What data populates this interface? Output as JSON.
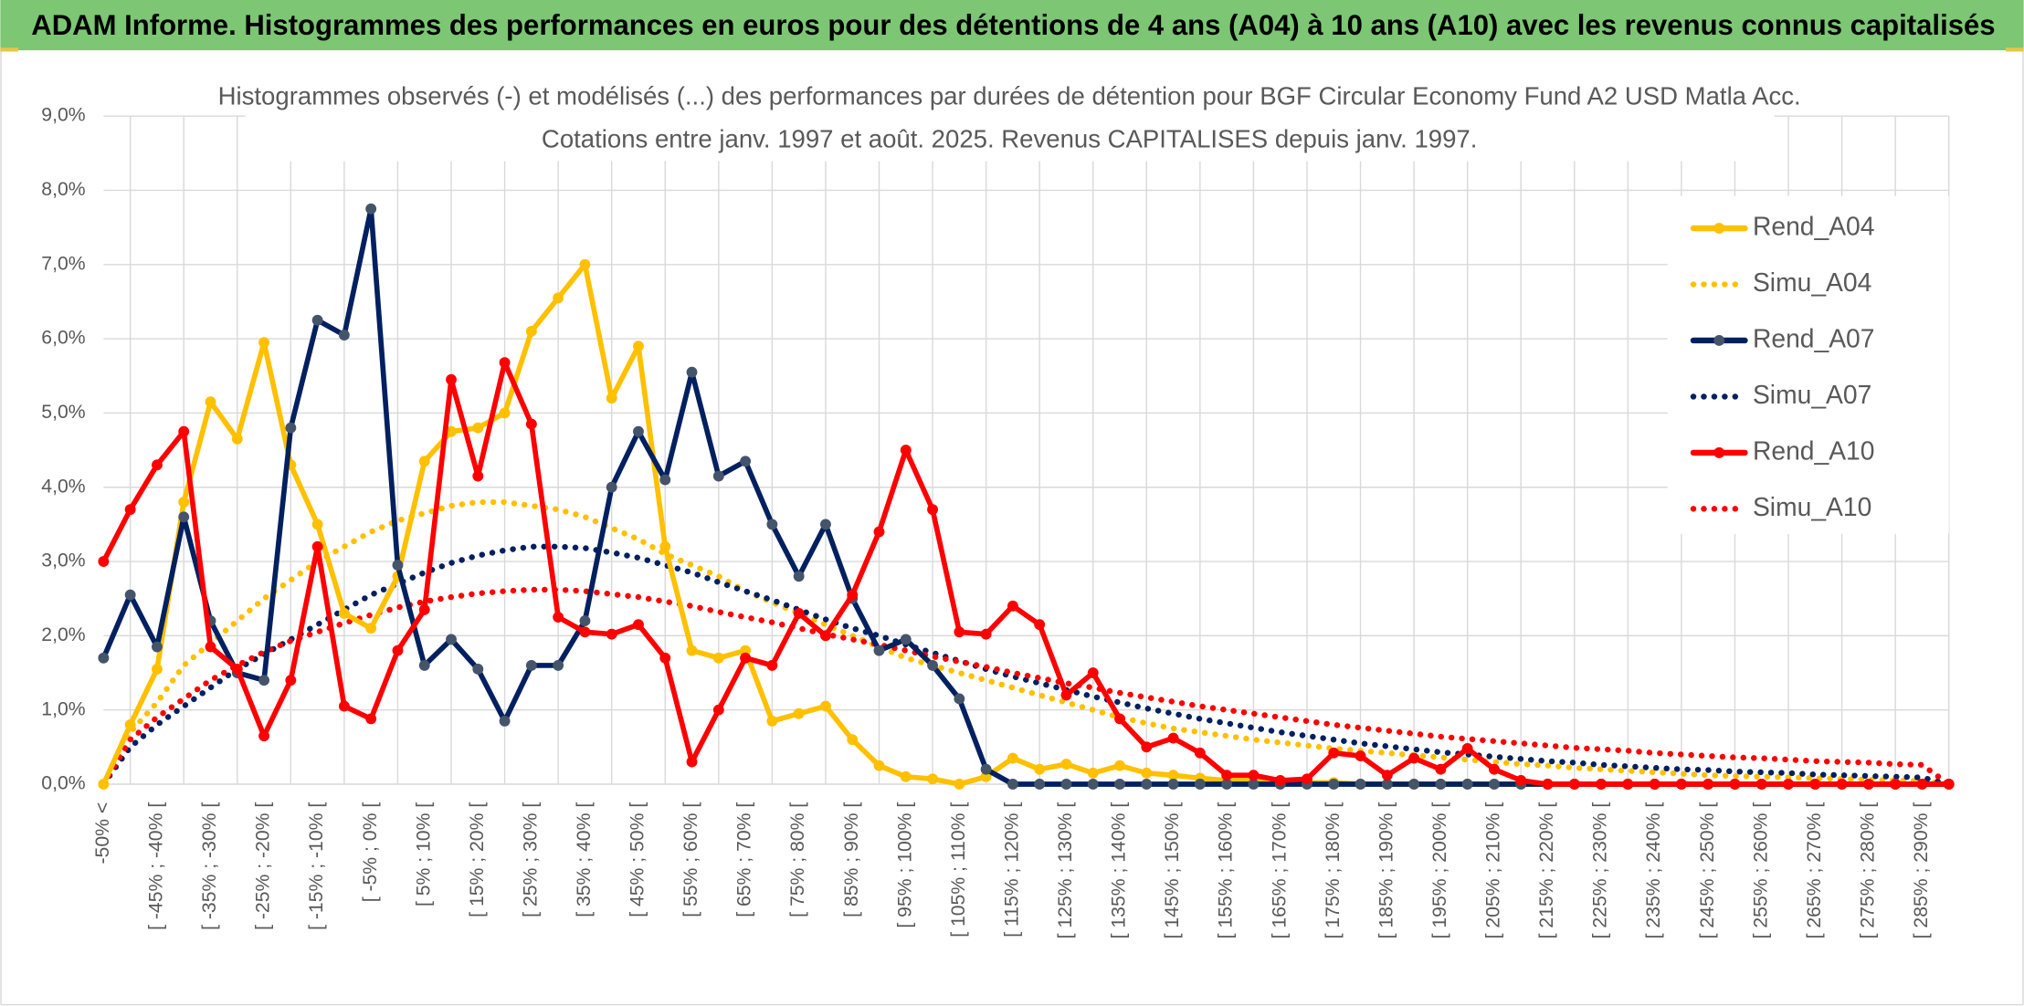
{
  "header": {
    "title": "ADAM Informe. Histogrammes des performances en euros pour des détentions de 4 ans (A04) à 10 ans (A10) avec les revenus connus capitalisés"
  },
  "chart_data": {
    "type": "line",
    "title": "Histogrammes observés (-) et modélisés (...) des performances par durées de détention pour BGF Circular Economy Fund A2 USD Matla Acc.",
    "subtitle": "Cotations entre janv. 1997 et août. 2025. Revenus CAPITALISES depuis janv. 1997.",
    "categories": [
      "-50% <",
      null,
      "[ -45% ; -40% [",
      null,
      "[ -35% ; -30% [",
      null,
      "[ -25% ; -20% [",
      null,
      "[ -15% ; -10% [",
      null,
      "[ -5% ; 0% [",
      null,
      "[ 5% ; 10% [",
      null,
      "[ 15% ; 20% [",
      null,
      "[ 25% ; 30% [",
      null,
      "[ 35% ; 40% [",
      null,
      "[ 45% ; 50% [",
      null,
      "[ 55% ; 60% [",
      null,
      "[ 65% ; 70% [",
      null,
      "[ 75% ; 80% [",
      null,
      "[ 85% ; 90% [",
      null,
      "[ 95% ; 100% [",
      null,
      "[ 105% ; 110% [",
      null,
      "[ 115% ; 120% [",
      null,
      "[ 125% ; 130% [",
      null,
      "[ 135% ; 140% [",
      null,
      "[ 145% ; 150% [",
      null,
      "[ 155% ; 160% [",
      null,
      "[ 165% ; 170% [",
      null,
      "[ 175% ; 180% [",
      null,
      "[ 185% ; 190% [",
      null,
      "[ 195% ; 200% [",
      null,
      "[ 205% ; 210% [",
      null,
      "[ 215% ; 220% [",
      null,
      "[ 225% ; 230% [",
      null,
      "[ 235% ; 240% [",
      null,
      "[ 245% ; 250% [",
      null,
      "[ 255% ; 260% [",
      null,
      "[ 265% ; 270% [",
      null,
      "[ 275% ; 280% [",
      null,
      "[ 285% ; 290% [",
      null
    ],
    "series": [
      {
        "name": "Rend_A04",
        "color": "#FFC000",
        "style": "solid",
        "marker_color": "#FFC000",
        "values": [
          0,
          0.8,
          1.55,
          3.8,
          5.15,
          4.65,
          5.95,
          4.3,
          3.5,
          2.3,
          2.1,
          2.8,
          4.35,
          4.75,
          4.8,
          5.0,
          6.1,
          6.55,
          7.0,
          5.2,
          5.9,
          3.2,
          1.8,
          1.7,
          1.8,
          0.85,
          0.95,
          1.05,
          0.6,
          0.25,
          0.1,
          0.07,
          0.0,
          0.1,
          0.35,
          0.2,
          0.27,
          0.15,
          0.25,
          0.15,
          0.12,
          0.08,
          0.05,
          0.05,
          0.03,
          0.02,
          0.02,
          0,
          0,
          0,
          0,
          0,
          0,
          0,
          0,
          0,
          0,
          0,
          0,
          0,
          0,
          0,
          0,
          0,
          0,
          0,
          0,
          0,
          0,
          0
        ]
      },
      {
        "name": "Simu_A04",
        "color": "#FFC000",
        "style": "dotted",
        "values": [
          0,
          0.7,
          1.1,
          1.6,
          1.9,
          2.2,
          2.5,
          2.75,
          3.0,
          3.2,
          3.4,
          3.55,
          3.65,
          3.75,
          3.8,
          3.8,
          3.75,
          3.7,
          3.6,
          3.45,
          3.3,
          3.1,
          2.95,
          2.8,
          2.6,
          2.45,
          2.3,
          2.15,
          2.0,
          1.85,
          1.7,
          1.6,
          1.5,
          1.4,
          1.3,
          1.2,
          1.1,
          1.0,
          0.9,
          0.82,
          0.75,
          0.7,
          0.65,
          0.6,
          0.56,
          0.52,
          0.48,
          0.45,
          0.42,
          0.39,
          0.36,
          0.33,
          0.3,
          0.27,
          0.25,
          0.22,
          0.2,
          0.18,
          0.16,
          0.14,
          0.12,
          0.11,
          0.1,
          0.09,
          0.08,
          0.07,
          0.06,
          0.05,
          0.04,
          0
        ]
      },
      {
        "name": "Rend_A07",
        "color": "#002060",
        "style": "solid",
        "marker_color": "#44546A",
        "values": [
          1.7,
          2.55,
          1.85,
          3.6,
          2.2,
          1.5,
          1.4,
          4.8,
          6.25,
          6.05,
          7.75,
          2.95,
          1.6,
          1.95,
          1.55,
          0.85,
          1.6,
          1.6,
          2.2,
          4.0,
          4.75,
          4.1,
          5.55,
          4.15,
          4.35,
          3.5,
          2.8,
          3.5,
          2.5,
          1.8,
          1.95,
          1.6,
          1.15,
          0.2,
          0,
          0,
          0,
          0,
          0,
          0,
          0,
          0,
          0,
          0,
          0,
          0,
          0,
          0,
          0,
          0,
          0,
          0,
          0,
          0,
          0,
          0,
          0,
          0,
          0,
          0,
          0,
          0,
          0,
          0,
          0,
          0,
          0,
          0,
          0,
          0
        ]
      },
      {
        "name": "Simu_A07",
        "color": "#002060",
        "style": "dotted",
        "values": [
          0,
          0.5,
          0.8,
          1.05,
          1.3,
          1.55,
          1.75,
          1.95,
          2.15,
          2.35,
          2.55,
          2.7,
          2.85,
          2.98,
          3.08,
          3.15,
          3.2,
          3.2,
          3.18,
          3.12,
          3.05,
          2.95,
          2.85,
          2.72,
          2.6,
          2.48,
          2.35,
          2.22,
          2.1,
          2.0,
          1.88,
          1.77,
          1.66,
          1.55,
          1.45,
          1.36,
          1.27,
          1.18,
          1.1,
          1.02,
          0.95,
          0.88,
          0.82,
          0.76,
          0.7,
          0.65,
          0.6,
          0.55,
          0.51,
          0.47,
          0.43,
          0.4,
          0.37,
          0.34,
          0.31,
          0.29,
          0.26,
          0.24,
          0.22,
          0.2,
          0.19,
          0.17,
          0.16,
          0.15,
          0.13,
          0.12,
          0.11,
          0.1,
          0.09,
          0
        ]
      },
      {
        "name": "Rend_A10",
        "color": "#FF0000",
        "style": "solid",
        "marker_color": "#FF0000",
        "values": [
          3.0,
          3.7,
          4.3,
          4.75,
          1.85,
          1.55,
          0.65,
          1.4,
          3.2,
          1.05,
          0.88,
          1.8,
          2.35,
          5.45,
          4.15,
          5.68,
          4.85,
          2.25,
          2.05,
          2.02,
          2.15,
          1.7,
          0.3,
          1.0,
          1.7,
          1.6,
          2.3,
          2.0,
          2.55,
          3.4,
          4.5,
          3.7,
          2.05,
          2.02,
          2.4,
          2.15,
          1.2,
          1.5,
          0.88,
          0.5,
          0.62,
          0.42,
          0.12,
          0.12,
          0.05,
          0.07,
          0.42,
          0.38,
          0.12,
          0.35,
          0.2,
          0.48,
          0.2,
          0.05,
          0,
          0,
          0,
          0,
          0,
          0,
          0,
          0,
          0,
          0,
          0,
          0,
          0,
          0,
          0,
          0
        ]
      },
      {
        "name": "Simu_A10",
        "color": "#FF0000",
        "style": "dotted",
        "values": [
          0,
          0.6,
          0.9,
          1.15,
          1.4,
          1.6,
          1.78,
          1.93,
          2.05,
          2.17,
          2.28,
          2.38,
          2.46,
          2.52,
          2.57,
          2.6,
          2.62,
          2.62,
          2.6,
          2.56,
          2.52,
          2.46,
          2.4,
          2.32,
          2.25,
          2.18,
          2.1,
          2.02,
          1.95,
          1.88,
          1.8,
          1.72,
          1.65,
          1.58,
          1.5,
          1.43,
          1.36,
          1.3,
          1.23,
          1.17,
          1.11,
          1.05,
          1.0,
          0.95,
          0.9,
          0.85,
          0.8,
          0.76,
          0.72,
          0.68,
          0.64,
          0.61,
          0.58,
          0.55,
          0.52,
          0.49,
          0.47,
          0.45,
          0.42,
          0.4,
          0.38,
          0.36,
          0.35,
          0.33,
          0.31,
          0.3,
          0.29,
          0.27,
          0.26,
          0
        ]
      }
    ],
    "ylim": [
      0,
      9
    ],
    "yticks": [
      {
        "value": 0,
        "label": "0,0%"
      },
      {
        "value": 1,
        "label": "1,0%"
      },
      {
        "value": 2,
        "label": "2,0%"
      },
      {
        "value": 3,
        "label": "3,0%"
      },
      {
        "value": 4,
        "label": "4,0%"
      },
      {
        "value": 5,
        "label": "5,0%"
      },
      {
        "value": 6,
        "label": "6,0%"
      },
      {
        "value": 7,
        "label": "7,0%"
      },
      {
        "value": 8,
        "label": "8,0%"
      },
      {
        "value": 9,
        "label": "9,0%"
      }
    ],
    "grid": true,
    "legend": "right"
  }
}
